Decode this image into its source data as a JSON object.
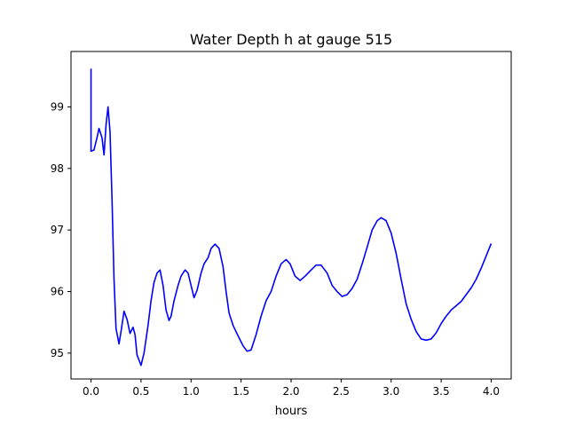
{
  "chart_data": {
    "type": "line",
    "title": "Water Depth h at gauge 515",
    "xlabel": "hours",
    "ylabel": "",
    "xlim": [
      -0.2,
      4.2
    ],
    "ylim": [
      94.58,
      99.9
    ],
    "xticks": [
      0.0,
      0.5,
      1.0,
      1.5,
      2.0,
      2.5,
      3.0,
      3.5,
      4.0
    ],
    "xtick_labels": [
      "0.0",
      "0.5",
      "1.0",
      "1.5",
      "2.0",
      "2.5",
      "3.0",
      "3.5",
      "4.0"
    ],
    "yticks": [
      95,
      96,
      97,
      98,
      99
    ],
    "ytick_labels": [
      "95",
      "96",
      "97",
      "98",
      "99"
    ],
    "grid": false,
    "series": [
      {
        "color": "#0000ff",
        "points": [
          [
            0.0,
            99.62
          ],
          [
            0.0,
            98.28
          ],
          [
            0.03,
            98.3
          ],
          [
            0.06,
            98.5
          ],
          [
            0.08,
            98.65
          ],
          [
            0.11,
            98.5
          ],
          [
            0.13,
            98.22
          ],
          [
            0.15,
            98.7
          ],
          [
            0.17,
            99.0
          ],
          [
            0.19,
            98.6
          ],
          [
            0.21,
            97.5
          ],
          [
            0.23,
            96.2
          ],
          [
            0.25,
            95.4
          ],
          [
            0.28,
            95.15
          ],
          [
            0.3,
            95.35
          ],
          [
            0.33,
            95.68
          ],
          [
            0.36,
            95.55
          ],
          [
            0.39,
            95.32
          ],
          [
            0.42,
            95.42
          ],
          [
            0.44,
            95.3
          ],
          [
            0.46,
            94.97
          ],
          [
            0.5,
            94.8
          ],
          [
            0.53,
            95.0
          ],
          [
            0.57,
            95.45
          ],
          [
            0.6,
            95.85
          ],
          [
            0.63,
            96.15
          ],
          [
            0.66,
            96.3
          ],
          [
            0.69,
            96.35
          ],
          [
            0.72,
            96.1
          ],
          [
            0.75,
            95.7
          ],
          [
            0.78,
            95.53
          ],
          [
            0.8,
            95.6
          ],
          [
            0.83,
            95.85
          ],
          [
            0.87,
            96.1
          ],
          [
            0.9,
            96.25
          ],
          [
            0.94,
            96.35
          ],
          [
            0.97,
            96.3
          ],
          [
            1.0,
            96.1
          ],
          [
            1.03,
            95.9
          ],
          [
            1.06,
            96.02
          ],
          [
            1.1,
            96.3
          ],
          [
            1.13,
            96.45
          ],
          [
            1.17,
            96.55
          ],
          [
            1.2,
            96.7
          ],
          [
            1.24,
            96.77
          ],
          [
            1.28,
            96.7
          ],
          [
            1.32,
            96.4
          ],
          [
            1.35,
            96.0
          ],
          [
            1.38,
            95.65
          ],
          [
            1.42,
            95.45
          ],
          [
            1.47,
            95.28
          ],
          [
            1.52,
            95.12
          ],
          [
            1.56,
            95.03
          ],
          [
            1.6,
            95.05
          ],
          [
            1.65,
            95.3
          ],
          [
            1.7,
            95.6
          ],
          [
            1.75,
            95.85
          ],
          [
            1.8,
            96.0
          ],
          [
            1.85,
            96.25
          ],
          [
            1.9,
            96.45
          ],
          [
            1.95,
            96.52
          ],
          [
            1.99,
            96.45
          ],
          [
            2.04,
            96.25
          ],
          [
            2.09,
            96.18
          ],
          [
            2.14,
            96.25
          ],
          [
            2.2,
            96.35
          ],
          [
            2.25,
            96.43
          ],
          [
            2.3,
            96.43
          ],
          [
            2.36,
            96.3
          ],
          [
            2.41,
            96.1
          ],
          [
            2.46,
            96.0
          ],
          [
            2.51,
            95.92
          ],
          [
            2.56,
            95.95
          ],
          [
            2.61,
            96.05
          ],
          [
            2.66,
            96.2
          ],
          [
            2.71,
            96.45
          ],
          [
            2.76,
            96.72
          ],
          [
            2.81,
            97.0
          ],
          [
            2.86,
            97.15
          ],
          [
            2.9,
            97.2
          ],
          [
            2.95,
            97.15
          ],
          [
            3.0,
            96.95
          ],
          [
            3.05,
            96.62
          ],
          [
            3.1,
            96.2
          ],
          [
            3.15,
            95.8
          ],
          [
            3.2,
            95.55
          ],
          [
            3.25,
            95.35
          ],
          [
            3.3,
            95.23
          ],
          [
            3.35,
            95.21
          ],
          [
            3.4,
            95.23
          ],
          [
            3.45,
            95.33
          ],
          [
            3.5,
            95.48
          ],
          [
            3.55,
            95.6
          ],
          [
            3.6,
            95.7
          ],
          [
            3.65,
            95.77
          ],
          [
            3.7,
            95.84
          ],
          [
            3.75,
            95.95
          ],
          [
            3.8,
            96.06
          ],
          [
            3.85,
            96.2
          ],
          [
            3.9,
            96.38
          ],
          [
            3.95,
            96.58
          ],
          [
            4.0,
            96.78
          ]
        ]
      }
    ]
  }
}
